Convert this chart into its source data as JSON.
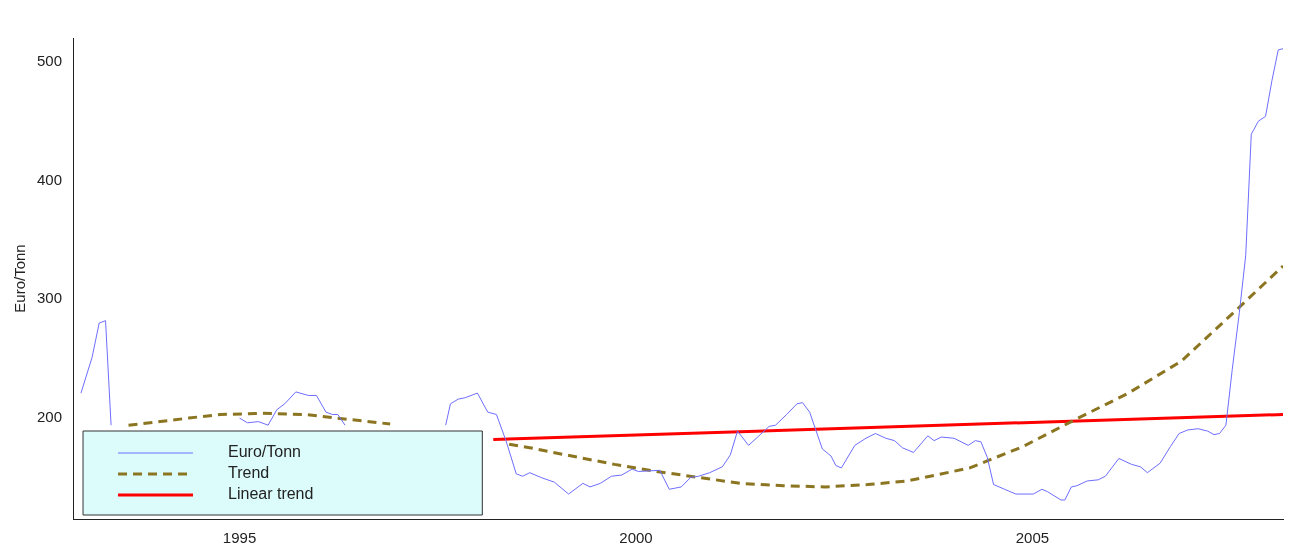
{
  "chart_data": {
    "type": "line",
    "ylabel": "Euro/Tonn",
    "xlim": [
      1992.9,
      2008.16
    ],
    "ylim": [
      115,
      520
    ],
    "xticks": [
      1995,
      2000,
      2005
    ],
    "yticks": [
      200,
      300,
      400,
      500
    ],
    "grid": false,
    "legend": "bottom left",
    "marker": "none",
    "series": [
      {
        "name": "Euro/Tonn",
        "line_style": "solid",
        "color": "#6e6eff",
        "x": [
          1993.0,
          1993.14,
          1993.23,
          1993.31,
          1993.38,
          1993.6,
          1995.0,
          1995.1,
          1995.24,
          1995.36,
          1995.47,
          1995.57,
          1995.71,
          1995.87,
          1995.97,
          1996.09,
          1996.17,
          1996.24,
          1996.33,
          1997.0,
          1997.6,
          1997.66,
          1997.76,
          1997.84,
          1998.0,
          1998.13,
          1998.24,
          1998.36,
          1998.49,
          1998.57,
          1998.66,
          1998.8,
          1998.97,
          1999.15,
          1999.33,
          1999.42,
          1999.55,
          1999.69,
          1999.82,
          1999.95,
          2000.03,
          2000.3,
          2000.42,
          2000.57,
          2000.69,
          2000.79,
          2000.93,
          2001.09,
          2001.19,
          2001.28,
          2001.42,
          2001.55,
          2001.68,
          2001.76,
          2001.9,
          2002.03,
          2002.1,
          2002.19,
          2002.35,
          2002.46,
          2002.52,
          2002.59,
          2002.76,
          2002.9,
          2003.02,
          2003.15,
          2003.26,
          2003.36,
          2003.5,
          2003.68,
          2003.76,
          2003.85,
          2004.01,
          2004.19,
          2004.28,
          2004.35,
          2004.43,
          2004.51,
          2004.65,
          2004.79,
          2005.01,
          2005.12,
          2005.19,
          2005.36,
          2005.41,
          2005.49,
          2005.56,
          2005.69,
          2005.83,
          2005.92,
          2006.09,
          2006.25,
          2006.36,
          2006.45,
          2006.61,
          2006.74,
          2006.85,
          2006.96,
          2007.09,
          2007.21,
          2007.29,
          2007.36,
          2007.44,
          2007.52,
          2007.61,
          2007.69,
          2007.76,
          2007.85,
          2007.94,
          2008.02,
          2008.1,
          2008.16
        ],
        "values": [
          221,
          251,
          280,
          282,
          194,
          null,
          200,
          196,
          197,
          194,
          207,
          212,
          222,
          219,
          219,
          205,
          203,
          203,
          194,
          null,
          194,
          212,
          216,
          217,
          221,
          205,
          203,
          181,
          153,
          151,
          154,
          150,
          146,
          136,
          145,
          142,
          145,
          151,
          152,
          157,
          155,
          156,
          140,
          142,
          150,
          151,
          154,
          159,
          169,
          189,
          177,
          185,
          193,
          194,
          203,
          212,
          213,
          205,
          174,
          168,
          160,
          158,
          177,
          183,
          187,
          183,
          181,
          175,
          171,
          185,
          181,
          184,
          183,
          177,
          181,
          180,
          167,
          144,
          140,
          136,
          136,
          140,
          138,
          131,
          131,
          142,
          143,
          147,
          148,
          151,
          166,
          161,
          159,
          154,
          162,
          176,
          187,
          190,
          191,
          189,
          186,
          187,
          194,
          241,
          289,
          337,
          439,
          450,
          454,
          484,
          510,
          511
        ]
      },
      {
        "name": "Trend",
        "line_style": "dashed",
        "color": "#8b7520",
        "x": [
          1993.6,
          1994.0,
          1994.36,
          1994.76,
          1995.29,
          1995.83,
          1996.36,
          1996.9,
          1997.6,
          1998.4,
          1998.66,
          1999.19,
          1999.73,
          2000.26,
          2000.79,
          2001.32,
          2001.86,
          2002.39,
          2002.92,
          2003.42,
          2004.21,
          2004.88,
          2005.55,
          2006.21,
          2006.88,
          2007.54,
          2008.16
        ],
        "values": [
          194,
          197,
          200,
          203,
          204,
          203,
          199,
          195,
          null,
          178,
          175,
          168,
          161,
          155,
          150,
          145,
          143,
          142,
          144,
          147,
          158,
          176,
          199,
          221,
          248,
          289,
          328
        ]
      },
      {
        "name": "Linear trend",
        "line_style": "solid",
        "color": "#ff0000",
        "x": [
          1998.2,
          2008.16
        ],
        "values": [
          182,
          203
        ]
      }
    ]
  }
}
